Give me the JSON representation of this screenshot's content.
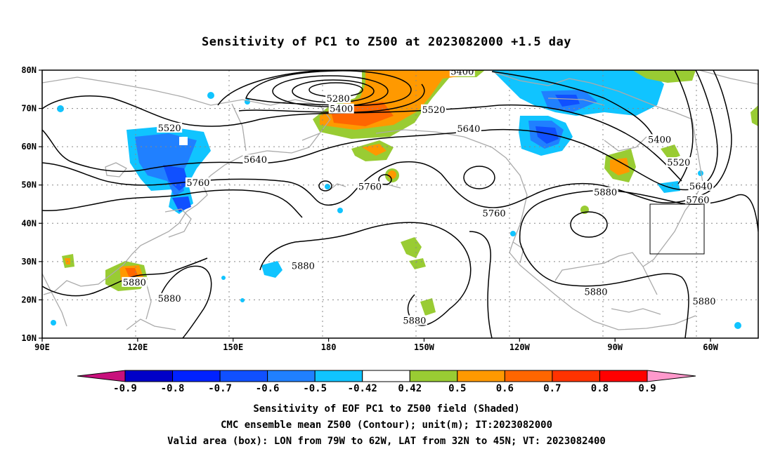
{
  "title": "Sensitivity of PC1 to Z500 at 2023082000 +1.5 day",
  "lat_ticks": [
    "80N",
    "70N",
    "60N",
    "50N",
    "40N",
    "30N",
    "20N",
    "10N"
  ],
  "lon_ticks": [
    "90E",
    "120E",
    "150E",
    "180",
    "150W",
    "120W",
    "90W",
    "60W"
  ],
  "contour_labels": [
    {
      "text": "5400",
      "lon": 222,
      "lat": 79.5
    },
    {
      "text": "5280",
      "lon": 183,
      "lat": 72.5
    },
    {
      "text": "5400",
      "lon": 184,
      "lat": 69.8
    },
    {
      "text": "5520",
      "lon": 130,
      "lat": 64.8
    },
    {
      "text": "5520",
      "lon": 213,
      "lat": 69.6
    },
    {
      "text": "5640",
      "lon": 224,
      "lat": 64.6
    },
    {
      "text": "5400",
      "lon": 284,
      "lat": 61.8
    },
    {
      "text": "5520",
      "lon": 290,
      "lat": 55.8
    },
    {
      "text": "5640",
      "lon": 157,
      "lat": 56.5
    },
    {
      "text": "5640",
      "lon": 297,
      "lat": 49.6
    },
    {
      "text": "5760",
      "lon": 139,
      "lat": 50.5
    },
    {
      "text": "5760",
      "lon": 193,
      "lat": 49.5
    },
    {
      "text": "5760",
      "lon": 232,
      "lat": 42.5
    },
    {
      "text": "5760",
      "lon": 296,
      "lat": 46.0
    },
    {
      "text": "5880",
      "lon": 267,
      "lat": 48.0
    },
    {
      "text": "5880",
      "lon": 172,
      "lat": 28.8
    },
    {
      "text": "5880",
      "lon": 119,
      "lat": 24.5
    },
    {
      "text": "5880",
      "lon": 130,
      "lat": 20.3
    },
    {
      "text": "5880",
      "lon": 264,
      "lat": 22.0
    },
    {
      "text": "5880",
      "lon": 298,
      "lat": 19.5
    },
    {
      "text": "5880",
      "lon": 207,
      "lat": 14.5
    }
  ],
  "colorbar": {
    "labels": [
      "-0.9",
      "-0.8",
      "-0.7",
      "-0.6",
      "-0.5",
      "-0.42",
      "0.42",
      "0.5",
      "0.6",
      "0.7",
      "0.8",
      "0.9"
    ],
    "colors": [
      "#c8107c",
      "#0000c8",
      "#0022ff",
      "#1050ff",
      "#2080ff",
      "#10c4ff",
      "#ffffff",
      "#99cc33",
      "#ff9900",
      "#ff6600",
      "#ff3300",
      "#ff0000",
      "#ff99cc"
    ]
  },
  "valid_box": {
    "lon_min": 281,
    "lon_max": 298,
    "lat_min": 32,
    "lat_max": 45
  },
  "caption": [
    "Sensitivity of EOF PC1 to Z500 field (Shaded)",
    "CMC ensemble mean Z500 (Contour); unit(m); IT:2023082000",
    "Valid area (box): LON from 79W to 62W, LAT from 32N to 45N; VT: 2023082400"
  ]
}
